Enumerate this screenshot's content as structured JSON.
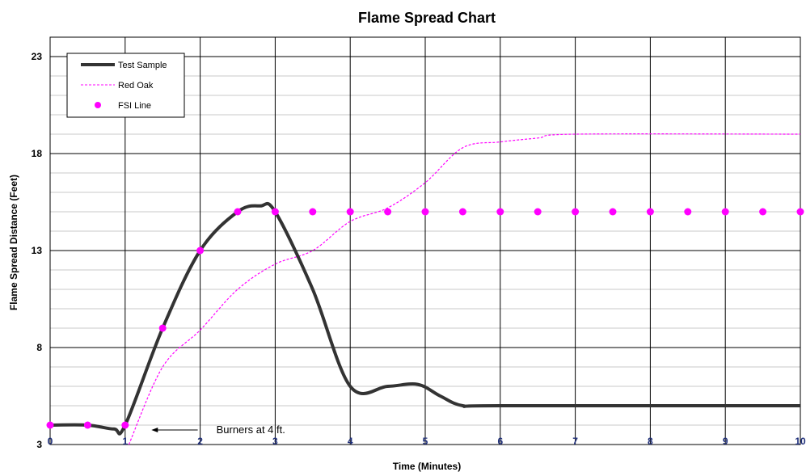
{
  "chart_data": {
    "type": "line",
    "title": "Flame Spread Chart",
    "xlabel": "Time (Minutes)",
    "ylabel": "Flame Spread Distance (Feet)",
    "xlim": [
      0,
      10
    ],
    "ylim": [
      3,
      24
    ],
    "x_ticks": [
      "0",
      "1",
      "2",
      "3",
      "4",
      "5",
      "6",
      "7",
      "8",
      "9",
      "10"
    ],
    "y_ticks": [
      "3",
      "8",
      "13",
      "18",
      "23"
    ],
    "grid": true,
    "legend_position": "top-left",
    "series": [
      {
        "name": "Test Sample",
        "style": "solid-thick",
        "color": "#333333",
        "points": [
          [
            0,
            4
          ],
          [
            0.5,
            4
          ],
          [
            0.85,
            3.8
          ],
          [
            1,
            4
          ],
          [
            1.5,
            9
          ],
          [
            2,
            13
          ],
          [
            2.5,
            15
          ],
          [
            2.8,
            15.3
          ],
          [
            3,
            15
          ],
          [
            3.5,
            11
          ],
          [
            4,
            6
          ],
          [
            4.5,
            6
          ],
          [
            4.9,
            6.1
          ],
          [
            5.2,
            5.5
          ],
          [
            5.5,
            5
          ],
          [
            6,
            5
          ],
          [
            10,
            5
          ]
        ]
      },
      {
        "name": "Red Oak",
        "style": "dashed",
        "color": "#ff00ff",
        "points": [
          [
            1.05,
            3
          ],
          [
            1.5,
            7
          ],
          [
            2,
            8.9
          ],
          [
            2.5,
            11
          ],
          [
            3,
            12.3
          ],
          [
            3.5,
            13
          ],
          [
            4,
            14.5
          ],
          [
            4.5,
            15.2
          ],
          [
            5,
            16.5
          ],
          [
            5.5,
            18.3
          ],
          [
            6,
            18.6
          ],
          [
            6.5,
            18.8
          ],
          [
            7,
            19
          ],
          [
            10,
            19
          ]
        ]
      },
      {
        "name": "FSI Line",
        "style": "dots",
        "color": "#ff00ff",
        "points": [
          [
            0,
            4
          ],
          [
            0.5,
            4
          ],
          [
            1,
            4
          ],
          [
            1.5,
            9
          ],
          [
            2,
            13
          ],
          [
            2.5,
            15
          ],
          [
            3,
            15
          ],
          [
            3.5,
            15
          ],
          [
            4,
            15
          ],
          [
            4.5,
            15
          ],
          [
            5,
            15
          ],
          [
            5.5,
            15
          ],
          [
            6,
            15
          ],
          [
            6.5,
            15
          ],
          [
            7,
            15
          ],
          [
            7.5,
            15
          ],
          [
            8,
            15
          ],
          [
            8.5,
            15
          ],
          [
            9,
            15
          ],
          [
            9.5,
            15
          ],
          [
            10,
            15
          ]
        ]
      }
    ],
    "annotation": {
      "text": "Burners at 4 ft.",
      "arrow_from": [
        2,
        3.75
      ],
      "arrow_to": [
        1.35,
        3.75
      ]
    }
  }
}
